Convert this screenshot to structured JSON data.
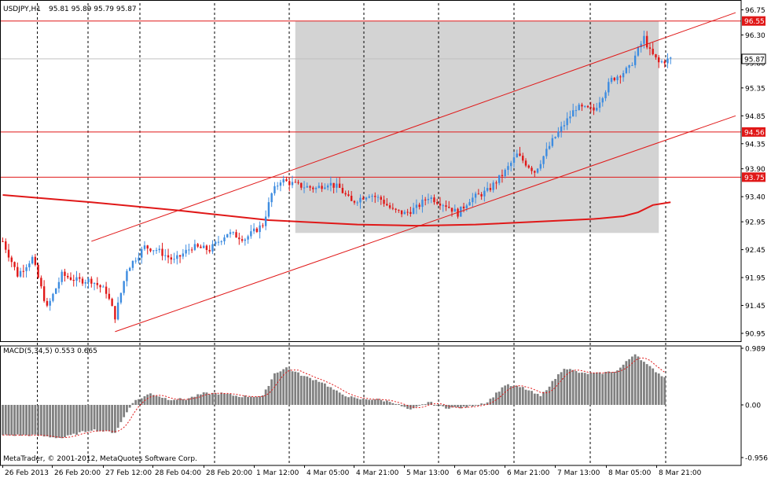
{
  "window": {
    "symbol_label": "USDJPY,H1",
    "ohlc_label": "95.81 95.89 95.79 95.87",
    "macd_label": "MACD(5,34,5) 0.553 0.665",
    "copyright": "MetaTrader, © 2001-2012, MetaQuotes Software Corp."
  },
  "colors": {
    "background": "#ffffff",
    "bull_candle": "#3d8ce0",
    "bear_candle": "#e01818",
    "level_line": "#e01818",
    "moving_average": "#e01818",
    "shade": "#d3d3d3",
    "grid": "#000000",
    "histogram": "#808080",
    "signal_line": "#e01818"
  },
  "chart_data": [
    {
      "type": "candlestick",
      "name": "price",
      "y_ticks": [
        "96.75",
        "96.30",
        "95.80",
        "95.35",
        "94.85",
        "94.35",
        "93.90",
        "93.40",
        "92.95",
        "92.45",
        "91.95",
        "91.45",
        "90.95"
      ],
      "y_range": [
        90.88,
        96.83
      ],
      "horizontal_levels": [
        {
          "value": 96.55,
          "label": "96.55"
        },
        {
          "value": 94.56,
          "label": "94.56"
        },
        {
          "value": 93.75,
          "label": "93.75"
        }
      ],
      "current_price": {
        "value": 95.87,
        "label": "95.87"
      },
      "shaded_zone": {
        "from_bar": 99,
        "to_bar": 222,
        "low": 92.75,
        "high": 96.55
      },
      "channel_lines": [
        {
          "from": {
            "bar": 30,
            "value": 92.6
          },
          "to": {
            "bar": 248,
            "value": 96.7
          }
        },
        {
          "from": {
            "bar": 38,
            "value": 90.98
          },
          "to": {
            "bar": 248,
            "value": 94.85
          }
        }
      ],
      "moving_average": {
        "points": [
          [
            0,
            93.43
          ],
          [
            30,
            93.3
          ],
          [
            60,
            93.15
          ],
          [
            90,
            92.98
          ],
          [
            120,
            92.9
          ],
          [
            140,
            92.88
          ],
          [
            160,
            92.9
          ],
          [
            180,
            92.95
          ],
          [
            200,
            93.0
          ],
          [
            210,
            93.05
          ],
          [
            215,
            93.12
          ],
          [
            220,
            93.25
          ],
          [
            226,
            93.3
          ]
        ]
      },
      "price_path": {
        "anchors": [
          [
            0,
            92.6
          ],
          [
            5,
            92.0
          ],
          [
            10,
            92.3
          ],
          [
            15,
            91.4
          ],
          [
            20,
            92.0
          ],
          [
            25,
            91.9
          ],
          [
            30,
            91.9
          ],
          [
            35,
            91.7
          ],
          [
            38,
            91.25
          ],
          [
            42,
            92.1
          ],
          [
            48,
            92.5
          ],
          [
            52,
            92.45
          ],
          [
            58,
            92.25
          ],
          [
            64,
            92.5
          ],
          [
            70,
            92.45
          ],
          [
            76,
            92.75
          ],
          [
            82,
            92.65
          ],
          [
            88,
            92.9
          ],
          [
            91,
            93.45
          ],
          [
            94,
            93.7
          ],
          [
            100,
            93.6
          ],
          [
            106,
            93.55
          ],
          [
            110,
            93.65
          ],
          [
            114,
            93.55
          ],
          [
            118,
            93.3
          ],
          [
            124,
            93.45
          ],
          [
            128,
            93.35
          ],
          [
            132,
            93.15
          ],
          [
            136,
            93.1
          ],
          [
            140,
            93.2
          ],
          [
            144,
            93.4
          ],
          [
            150,
            93.25
          ],
          [
            154,
            93.1
          ],
          [
            158,
            93.35
          ],
          [
            164,
            93.5
          ],
          [
            170,
            93.85
          ],
          [
            174,
            94.15
          ],
          [
            180,
            93.85
          ],
          [
            186,
            94.4
          ],
          [
            194,
            95.0
          ],
          [
            200,
            94.95
          ],
          [
            206,
            95.5
          ],
          [
            212,
            95.7
          ],
          [
            217,
            96.25
          ],
          [
            219,
            96.0
          ],
          [
            222,
            95.8
          ],
          [
            226,
            95.87
          ]
        ]
      },
      "x_labels": [
        "26 Feb 2013",
        "26 Feb 20:00",
        "27 Feb 12:00",
        "28 Feb 04:00",
        "28 Feb 20:00",
        "1 Mar 12:00",
        "4 Mar 05:00",
        "4 Mar 21:00",
        "5 Mar 13:00",
        "6 Mar 05:00",
        "6 Mar 21:00",
        "7 Mar 13:00",
        "8 Mar 05:00",
        "8 Mar 21:00"
      ],
      "grid": "vertical dashed"
    },
    {
      "type": "bar",
      "name": "macd",
      "y_ticks": [
        "0.989",
        "0.00",
        "-0.956"
      ],
      "y_range": [
        -0.956,
        0.989
      ],
      "histogram_anchors": [
        [
          0,
          -0.55
        ],
        [
          10,
          -0.55
        ],
        [
          20,
          -0.6
        ],
        [
          30,
          -0.45
        ],
        [
          38,
          -0.5
        ],
        [
          44,
          0.05
        ],
        [
          50,
          0.2
        ],
        [
          56,
          0.1
        ],
        [
          62,
          0.1
        ],
        [
          68,
          0.2
        ],
        [
          74,
          0.2
        ],
        [
          80,
          0.15
        ],
        [
          88,
          0.15
        ],
        [
          92,
          0.55
        ],
        [
          96,
          0.65
        ],
        [
          102,
          0.5
        ],
        [
          108,
          0.4
        ],
        [
          114,
          0.2
        ],
        [
          120,
          0.1
        ],
        [
          126,
          0.1
        ],
        [
          132,
          0.05
        ],
        [
          138,
          -0.1
        ],
        [
          144,
          0.05
        ],
        [
          150,
          -0.05
        ],
        [
          156,
          -0.05
        ],
        [
          164,
          0.05
        ],
        [
          170,
          0.35
        ],
        [
          176,
          0.3
        ],
        [
          182,
          0.15
        ],
        [
          190,
          0.65
        ],
        [
          196,
          0.55
        ],
        [
          202,
          0.55
        ],
        [
          208,
          0.6
        ],
        [
          214,
          0.9
        ],
        [
          218,
          0.7
        ],
        [
          222,
          0.55
        ],
        [
          224,
          0.48
        ]
      ],
      "signal_lag_bars": 5,
      "baseline": 0.0
    }
  ]
}
